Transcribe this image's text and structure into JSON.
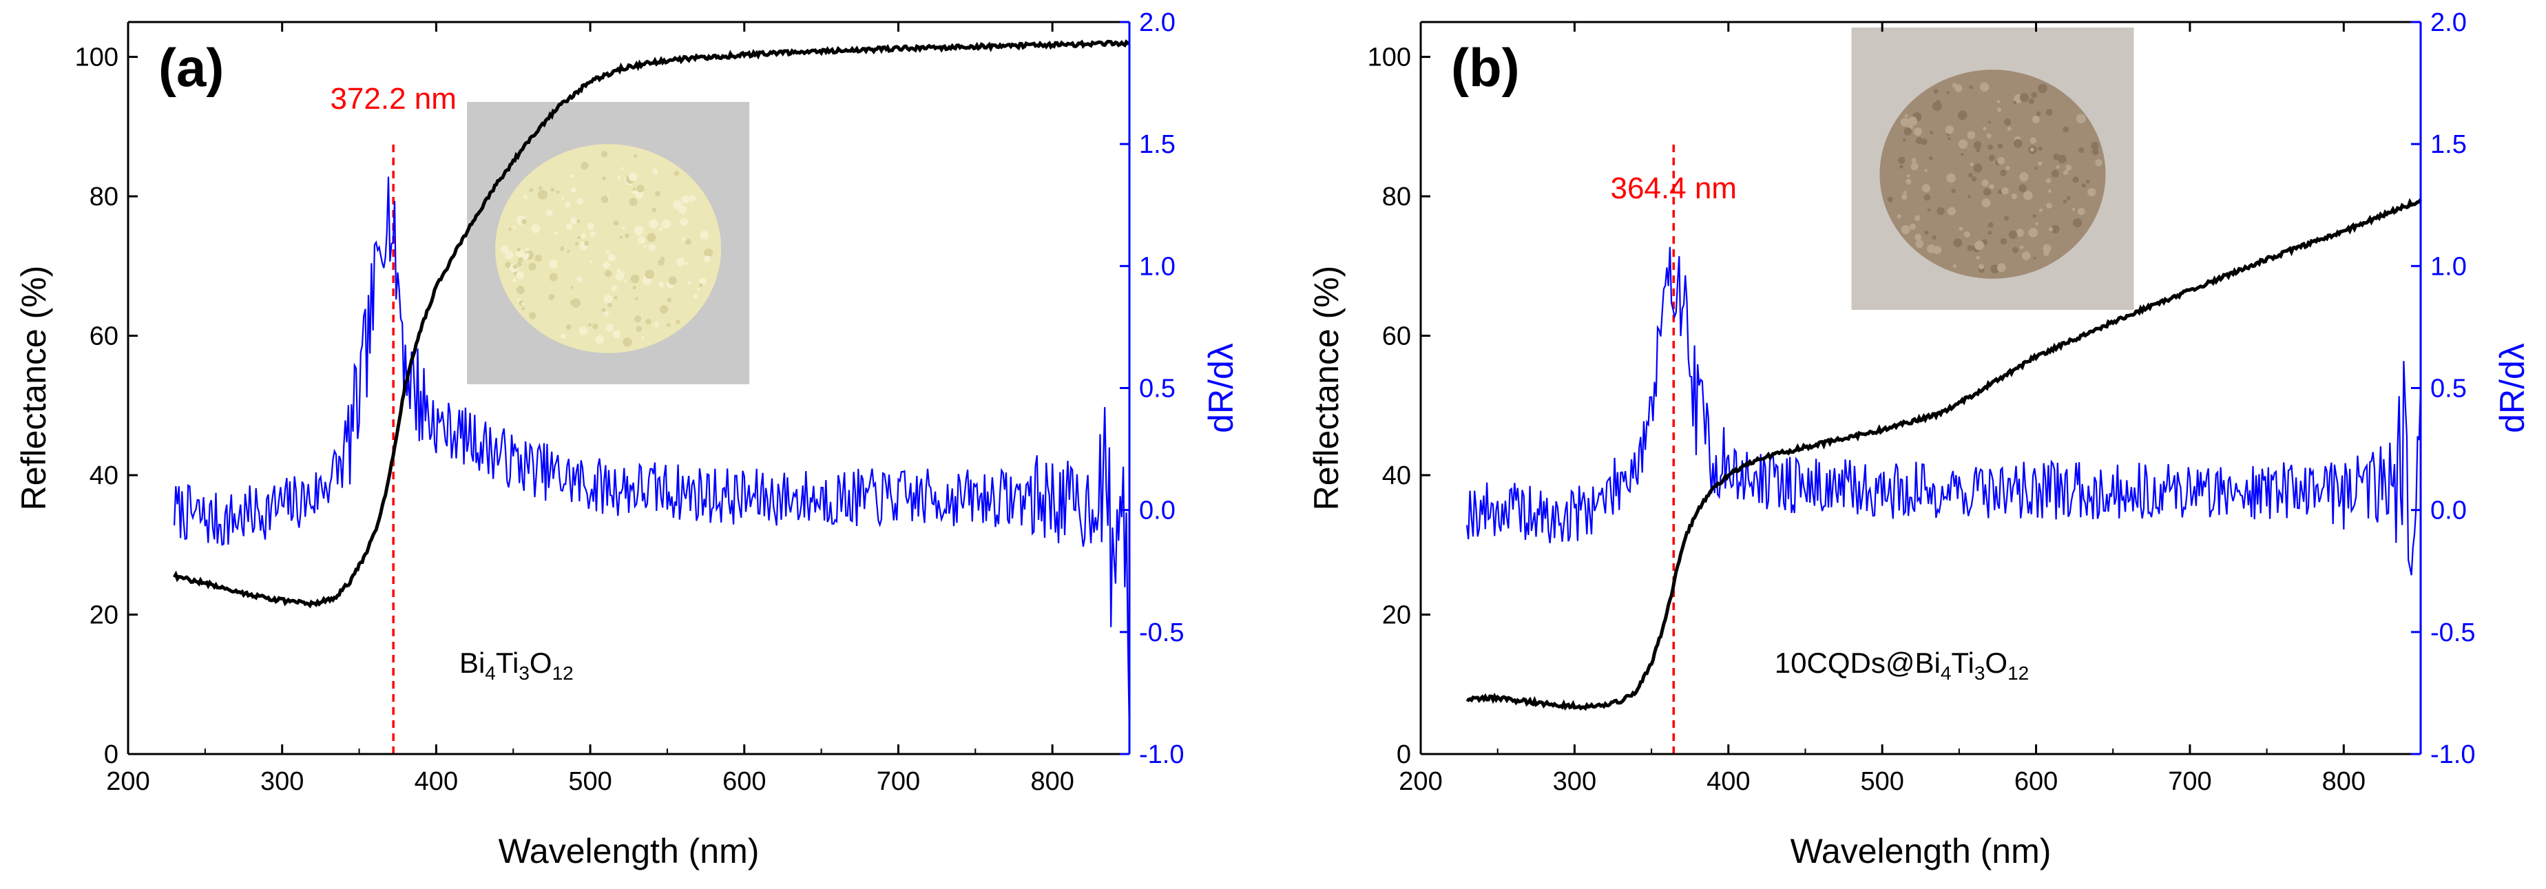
{
  "chart_data": [
    {
      "type": "line",
      "panel_label": "(a)",
      "xlabel": "Wavelength (nm)",
      "ylabel_left": "Reflectance (%)",
      "ylabel_right": "dR/dλ",
      "xlim": [
        200,
        850
      ],
      "ylim_left": [
        0,
        105
      ],
      "ylim_right": [
        -1.0,
        2.0
      ],
      "xticks": [
        "200",
        "300",
        "400",
        "500",
        "600",
        "700",
        "800"
      ],
      "yticks_left": [
        "0",
        "20",
        "40",
        "60",
        "80",
        "100"
      ],
      "yticks_right": [
        "-1.0",
        "-0.5",
        "0.0",
        "0.5",
        "1.0",
        "1.5",
        "2.0"
      ],
      "marker_label": "372.2 nm",
      "marker_x": 372.2,
      "sample_label": {
        "base": "Bi",
        "sub1": "4",
        "mid": "Ti",
        "sub2": "3",
        "end": "O",
        "sub3": "12",
        "prefix": ""
      },
      "inset": {
        "description": "pale yellow powder photo",
        "color": "#ece7b6"
      },
      "colors": {
        "reflectance": "#000000",
        "derivative": "#0000ff",
        "marker": "#ff0000",
        "right_axis": "#0000ff"
      },
      "series": [
        {
          "axis": "left",
          "x": [
            230,
            260,
            280,
            300,
            320,
            335,
            345,
            355,
            362,
            368,
            372,
            376,
            380,
            390,
            400,
            420,
            440,
            460,
            480,
            500,
            520,
            540,
            560,
            600,
            650,
            700,
            750,
            800,
            850
          ],
          "y": [
            25.5,
            24.0,
            22.8,
            22.0,
            21.5,
            22.5,
            25.0,
            29.0,
            33.0,
            38.0,
            43.0,
            48.0,
            53.0,
            61.0,
            67.0,
            75.0,
            82.0,
            88.0,
            93.0,
            96.5,
            98.3,
            99.2,
            99.7,
            100.3,
            100.8,
            101.2,
            101.5,
            101.7,
            102.0
          ]
        },
        {
          "axis": "right",
          "x": [
            230,
            260,
            290,
            320,
            340,
            350,
            358,
            364,
            368,
            372,
            376,
            380,
            390,
            400,
            420,
            450,
            500,
            550,
            600,
            650,
            700,
            750,
            780,
            800,
            820,
            835,
            840,
            845,
            850
          ],
          "y": [
            0.0,
            -0.05,
            0.0,
            0.05,
            0.2,
            0.45,
            0.8,
            1.1,
            1.3,
            1.1,
            0.9,
            0.6,
            0.45,
            0.35,
            0.3,
            0.2,
            0.1,
            0.08,
            0.05,
            0.05,
            0.05,
            0.05,
            0.05,
            0.05,
            0.0,
            0.1,
            -0.3,
            0.2,
            -0.7
          ]
        }
      ]
    },
    {
      "type": "line",
      "panel_label": "(b)",
      "xlabel": "Wavelength (nm)",
      "ylabel_left": "Reflectance (%)",
      "ylabel_right": "dR/dλ",
      "xlim": [
        200,
        850
      ],
      "ylim_left": [
        0,
        105
      ],
      "ylim_right": [
        -1.0,
        2.0
      ],
      "xticks": [
        "200",
        "300",
        "400",
        "500",
        "600",
        "700",
        "800"
      ],
      "yticks_left": [
        "0",
        "20",
        "40",
        "60",
        "80",
        "100"
      ],
      "yticks_right": [
        "-1.0",
        "-0.5",
        "0.0",
        "0.5",
        "1.0",
        "1.5",
        "2.0"
      ],
      "marker_label": "364.4 nm",
      "marker_x": 364.4,
      "sample_label": {
        "prefix": "10CQDs@",
        "base": "Bi",
        "sub1": "4",
        "mid": "Ti",
        "sub2": "3",
        "end": "O",
        "sub3": "12"
      },
      "inset": {
        "description": "brown powder photo",
        "color": "#a08b74"
      },
      "colors": {
        "reflectance": "#000000",
        "derivative": "#0000ff",
        "marker": "#ff0000",
        "right_axis": "#0000ff"
      },
      "series": [
        {
          "axis": "left",
          "x": [
            230,
            250,
            270,
            290,
            310,
            330,
            340,
            350,
            356,
            362,
            366,
            372,
            380,
            390,
            400,
            420,
            450,
            500,
            540,
            570,
            600,
            650,
            700,
            750,
            800,
            850
          ],
          "y": [
            8.0,
            8.0,
            7.5,
            7.0,
            6.8,
            7.5,
            9.0,
            13.0,
            17.0,
            22.0,
            26.0,
            31.0,
            35.0,
            38.0,
            40.0,
            42.5,
            44.0,
            46.5,
            49.0,
            53.0,
            57.0,
            62.0,
            66.5,
            71.0,
            75.0,
            79.5
          ]
        },
        {
          "axis": "right",
          "x": [
            230,
            260,
            290,
            320,
            340,
            350,
            356,
            362,
            366,
            370,
            375,
            380,
            390,
            400,
            420,
            450,
            500,
            550,
            600,
            650,
            700,
            750,
            800,
            820,
            835,
            840,
            845,
            850
          ],
          "y": [
            0.0,
            0.0,
            -0.05,
            0.05,
            0.2,
            0.4,
            0.7,
            0.9,
            1.0,
            0.9,
            0.6,
            0.4,
            0.25,
            0.15,
            0.12,
            0.1,
            0.08,
            0.08,
            0.08,
            0.08,
            0.08,
            0.08,
            0.1,
            0.1,
            0.2,
            0.3,
            -0.3,
            0.7
          ]
        }
      ]
    }
  ]
}
